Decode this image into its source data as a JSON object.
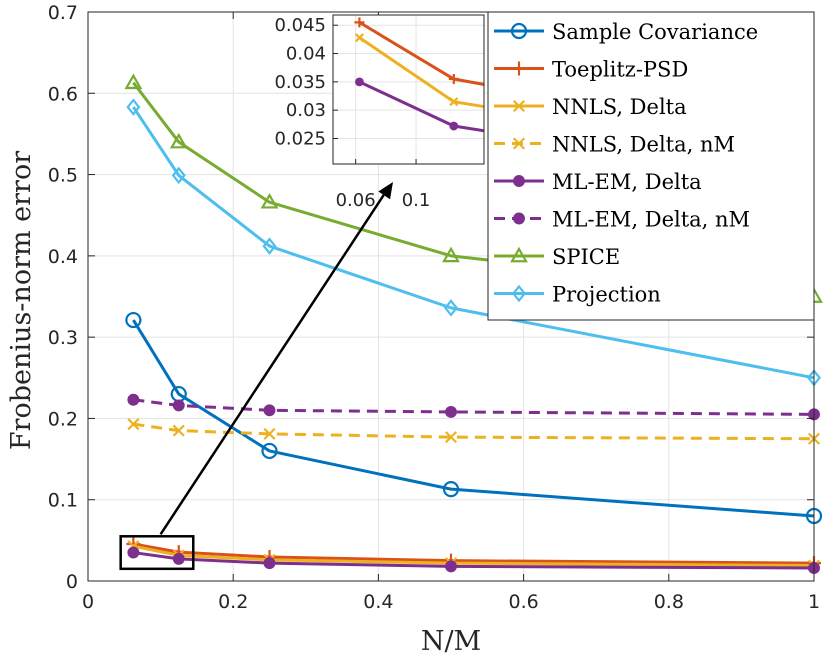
{
  "chart_data": {
    "type": "line",
    "title": "",
    "xlabel": "N/M",
    "ylabel": "Frobenius-norm error",
    "xlim": [
      0,
      1
    ],
    "ylim": [
      0,
      0.7
    ],
    "xticks": [
      0,
      0.2,
      0.4,
      0.6,
      0.8,
      1
    ],
    "xtick_labels": [
      "0",
      "0.2",
      "0.4",
      "0.6",
      "0.8",
      "1"
    ],
    "yticks": [
      0,
      0.1,
      0.2,
      0.3,
      0.4,
      0.5,
      0.6,
      0.7
    ],
    "ytick_labels": [
      "0",
      "0.1",
      "0.2",
      "0.3",
      "0.4",
      "0.5",
      "0.6",
      "0.7"
    ],
    "grid": true,
    "legend_position": "top-right",
    "x": [
      0.0625,
      0.125,
      0.25,
      0.5,
      1
    ],
    "series": [
      {
        "name": "Sample Covariance",
        "values": [
          0.321,
          0.23,
          0.16,
          0.113,
          0.08
        ],
        "color": "#0072BD",
        "marker": "circle",
        "dash": false
      },
      {
        "name": "Toeplitz-PSD",
        "values": [
          0.0455,
          0.0355,
          0.0295,
          0.025,
          0.022
        ],
        "color": "#D95319",
        "marker": "plus",
        "dash": false
      },
      {
        "name": "NNLS, Delta",
        "values": [
          0.0428,
          0.0315,
          0.026,
          0.022,
          0.019
        ],
        "color": "#EDB120",
        "marker": "x",
        "dash": false
      },
      {
        "name": "NNLS, Delta, nM",
        "values": [
          0.193,
          0.185,
          0.181,
          0.177,
          0.175
        ],
        "color": "#EDB120",
        "marker": "x",
        "dash": true
      },
      {
        "name": "ML-EM, Delta",
        "values": [
          0.035,
          0.0272,
          0.022,
          0.018,
          0.016
        ],
        "color": "#7E2F8E",
        "marker": "dot",
        "dash": false
      },
      {
        "name": "ML-EM, Delta, nM",
        "values": [
          0.223,
          0.216,
          0.21,
          0.208,
          0.205
        ],
        "color": "#7E2F8E",
        "marker": "dot",
        "dash": true
      },
      {
        "name": "SPICE",
        "values": [
          0.613,
          0.54,
          0.466,
          0.4,
          0.35
        ],
        "color": "#77AC30",
        "marker": "triangle",
        "dash": false
      },
      {
        "name": "Projection",
        "values": [
          0.583,
          0.499,
          0.412,
          0.336,
          0.25
        ],
        "color": "#4DBEEE",
        "marker": "diamond",
        "dash": false
      }
    ],
    "inset": {
      "xlim": [
        0.045,
        0.145
      ],
      "ylim": [
        0.0205,
        0.0468
      ],
      "xticks": [
        0.06,
        0.1
      ],
      "xtick_labels": [
        "0.06",
        "0.1"
      ],
      "yticks": [
        0.025,
        0.03,
        0.035,
        0.04,
        0.045
      ],
      "ytick_labels": [
        "0.025",
        "0.03",
        "0.035",
        "0.04",
        "0.045"
      ],
      "series_shown": [
        "Toeplitz-PSD",
        "NNLS, Delta",
        "ML-EM, Delta"
      ]
    },
    "zoom_box": {
      "x": [
        0.045,
        0.145
      ],
      "y": [
        0.015,
        0.055
      ]
    }
  }
}
